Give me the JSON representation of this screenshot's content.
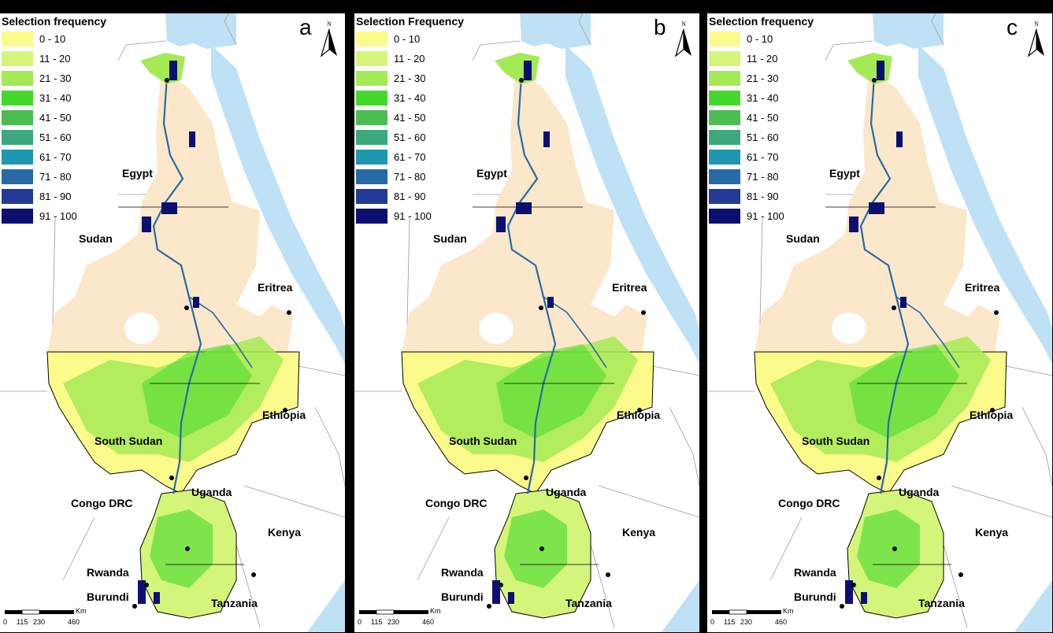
{
  "legend": {
    "classes": [
      {
        "label": "0 - 10",
        "color": "#fbfb8c"
      },
      {
        "label": "11 - 20",
        "color": "#d4f57a"
      },
      {
        "label": "21 - 30",
        "color": "#a4ea55"
      },
      {
        "label": "31 - 40",
        "color": "#45d82c"
      },
      {
        "label": "41 - 50",
        "color": "#4cbc52"
      },
      {
        "label": "51 - 60",
        "color": "#3da77e"
      },
      {
        "label": "61 - 70",
        "color": "#1f97b0"
      },
      {
        "label": "71 - 80",
        "color": "#276aa6"
      },
      {
        "label": "81 - 90",
        "color": "#243b96"
      },
      {
        "label": "91 - 100",
        "color": "#0b1070"
      }
    ]
  },
  "panels": [
    {
      "letter": "a",
      "legend_title": "Selection frequency"
    },
    {
      "letter": "b",
      "legend_title": "Selection Frequency"
    },
    {
      "letter": "c",
      "legend_title": "Selection frequency"
    }
  ],
  "north_label": "N",
  "countries": {
    "egypt": "Egypt",
    "sudan": "Sudan",
    "eritrea": "Eritrea",
    "ethiopia": "Ethiopia",
    "south_sudan": "South Sudan",
    "congo": "Congo DRC",
    "uganda": "Uganda",
    "kenya": "Kenya",
    "rwanda": "Rwanda",
    "burundi": "Burundi",
    "tanzania": "Tanzania"
  },
  "scale": {
    "unit": "Km",
    "ticks": [
      "0",
      "115",
      "230",
      "460"
    ]
  },
  "colors": {
    "sea": "#bee1f5",
    "sudan_desert": "#fbe7c9",
    "background": "#000000"
  }
}
